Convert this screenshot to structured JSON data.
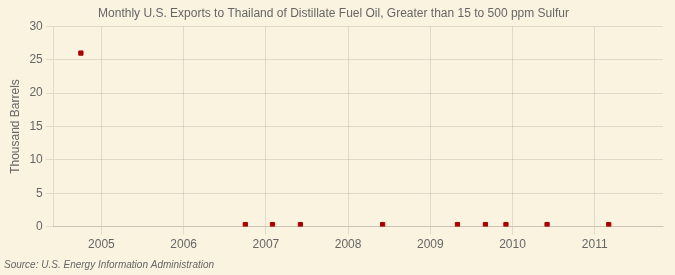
{
  "chart_data": {
    "type": "scatter",
    "title": "Monthly U.S. Exports to Thailand of Distillate Fuel Oil, Greater than 15 to 500 ppm Sulfur",
    "ylabel": "Thousand Barrels",
    "source": "Source: U.S. Energy Information Administration",
    "x": [
      2004.75,
      2006.75,
      2007.08,
      2007.42,
      2008.42,
      2009.33,
      2009.67,
      2009.92,
      2010.42,
      2011.17
    ],
    "values": [
      26,
      0.3,
      0.3,
      0.3,
      0.3,
      0.3,
      0.3,
      0.3,
      0.3,
      0.3
    ],
    "color": "#aa0000",
    "marker": "square",
    "xlim": [
      2004.42,
      2011.83
    ],
    "xticks": [
      2005,
      2006,
      2007,
      2008,
      2009,
      2010,
      2011
    ],
    "ylim": [
      0,
      30
    ],
    "yticks": [
      0,
      5,
      10,
      15,
      20,
      25,
      30
    ],
    "grid": true
  }
}
